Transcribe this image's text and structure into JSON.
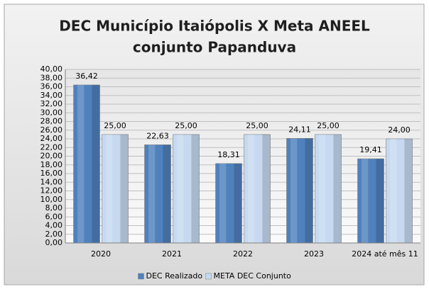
{
  "chart_data": {
    "type": "bar",
    "title": [
      "DEC Município Itaiópolis X Meta ANEEL",
      "conjunto Papanduva"
    ],
    "categories": [
      "2020",
      "2021",
      "2022",
      "2023",
      "2024 até mês 11"
    ],
    "series": [
      {
        "name": "DEC Realizado",
        "color": "#4f81bd",
        "values": [
          36.42,
          22.63,
          18.31,
          24.11,
          19.41
        ],
        "value_labels": [
          "36,42",
          "22,63",
          "18,31",
          "24,11",
          "19,41"
        ]
      },
      {
        "name": "META DEC Conjunto",
        "color": "#c6d9f1",
        "values": [
          25,
          25,
          25,
          25,
          24
        ],
        "value_labels": [
          "25,00",
          "25,00",
          "25,00",
          "25,00",
          "24,00"
        ]
      }
    ],
    "ylim": [
      0,
      40
    ],
    "yticks": [
      {
        "value": 0,
        "label": "0,00"
      },
      {
        "value": 2,
        "label": "2,00"
      },
      {
        "value": 4,
        "label": "4,00"
      },
      {
        "value": 6,
        "label": "6,00"
      },
      {
        "value": 8,
        "label": "8,00"
      },
      {
        "value": 10,
        "label": "10,00"
      },
      {
        "value": 12,
        "label": "12,00"
      },
      {
        "value": 14,
        "label": "14,00"
      },
      {
        "value": 16,
        "label": "16,00"
      },
      {
        "value": 18,
        "label": "18,00"
      },
      {
        "value": 20,
        "label": "20,00"
      },
      {
        "value": 22,
        "label": "22,00"
      },
      {
        "value": 24,
        "label": "24,00"
      },
      {
        "value": 26,
        "label": "26,00"
      },
      {
        "value": 28,
        "label": "28,00"
      },
      {
        "value": 30,
        "label": "30,00"
      },
      {
        "value": 32,
        "label": "32,00"
      },
      {
        "value": 34,
        "label": "34,00"
      },
      {
        "value": 36,
        "label": "36,00"
      },
      {
        "value": 38,
        "label": "38,00"
      },
      {
        "value": 40,
        "label": "40,00"
      }
    ],
    "grid": true,
    "legend": "bottom"
  }
}
